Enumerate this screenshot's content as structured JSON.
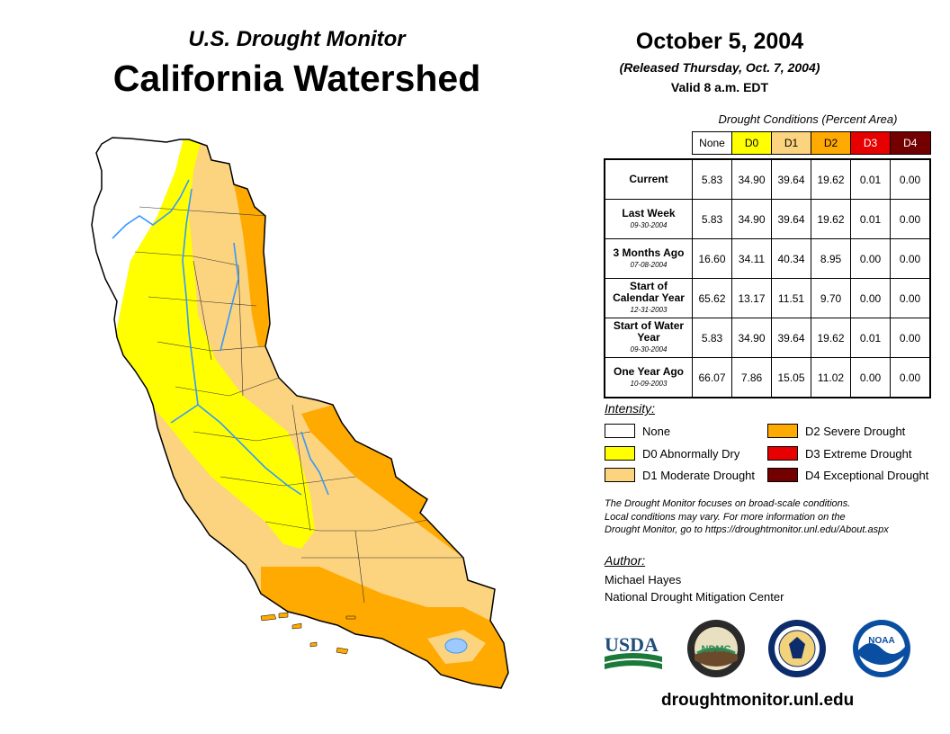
{
  "header": {
    "subtitle": "U.S. Drought Monitor",
    "title": "California Watershed",
    "date": "October 5, 2004",
    "released": "(Released Thursday, Oct. 7, 2004)",
    "valid": "Valid 8 a.m. EDT"
  },
  "colors": {
    "none": "#ffffff",
    "d0": "#ffff00",
    "d1": "#fcd37f",
    "d2": "#ffaa00",
    "d3": "#e60000",
    "d4": "#730000",
    "river": "#3399ff"
  },
  "conditions": {
    "title": "Drought Conditions (Percent Area)",
    "columns": [
      "None",
      "D0",
      "D1",
      "D2",
      "D3",
      "D4"
    ],
    "rows": [
      {
        "label": "Current",
        "date": "",
        "values": [
          "5.83",
          "34.90",
          "39.64",
          "19.62",
          "0.01",
          "0.00"
        ]
      },
      {
        "label": "Last Week",
        "date": "09-30-2004",
        "values": [
          "5.83",
          "34.90",
          "39.64",
          "19.62",
          "0.01",
          "0.00"
        ]
      },
      {
        "label": "3 Months Ago",
        "date": "07-08-2004",
        "values": [
          "16.60",
          "34.11",
          "40.34",
          "8.95",
          "0.00",
          "0.00"
        ]
      },
      {
        "label": "Start of Calendar Year",
        "date": "12-31-2003",
        "values": [
          "65.62",
          "13.17",
          "11.51",
          "9.70",
          "0.00",
          "0.00"
        ]
      },
      {
        "label": "Start of Water Year",
        "date": "09-30-2004",
        "values": [
          "5.83",
          "34.90",
          "39.64",
          "19.62",
          "0.01",
          "0.00"
        ]
      },
      {
        "label": "One Year Ago",
        "date": "10-09-2003",
        "values": [
          "66.07",
          "7.86",
          "15.05",
          "11.02",
          "0.00",
          "0.00"
        ]
      }
    ]
  },
  "legend": {
    "title": "Intensity:",
    "items": [
      {
        "label": "None"
      },
      {
        "label": "D0 Abnormally Dry"
      },
      {
        "label": "D1 Moderate Drought"
      },
      {
        "label": "D2 Severe Drought"
      },
      {
        "label": "D3 Extreme Drought"
      },
      {
        "label": "D4 Exceptional Drought"
      }
    ]
  },
  "note": {
    "line1": "The Drought Monitor focuses on broad-scale conditions.",
    "line2": "Local conditions may vary. For more information on the",
    "line3": "Drought Monitor, go to https://droughtmonitor.unl.edu/About.aspx"
  },
  "author": {
    "title": "Author:",
    "name": "Michael Hayes",
    "org": "National Drought Mitigation Center"
  },
  "logos": {
    "usda": "USDA",
    "ndmc": "NDMC",
    "noaa": "NOAA"
  },
  "website": "droughtmonitor.unl.edu"
}
